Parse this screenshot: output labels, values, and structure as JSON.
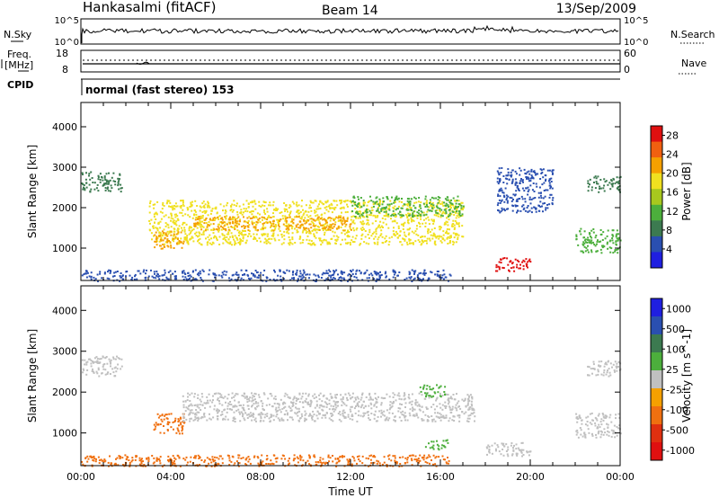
{
  "header": {
    "station": "Hankasalmi (fitACF)",
    "beam": "Beam 14",
    "date": "13/Sep/2009"
  },
  "status_panel": {
    "nsky_label": "N.Sky",
    "nsky_ticks": [
      "10^5",
      "10^0"
    ],
    "nsearch_label": "N.Search",
    "nsearch_ticks": [
      "10^5",
      "10^0"
    ],
    "freq_label_1": "Freq.",
    "freq_label_2": "[MHz]",
    "freq_ticks": [
      "18",
      "8"
    ],
    "nave_label": "Nave",
    "nave_ticks": [
      "60",
      "0"
    ],
    "cpid_label": "CPID",
    "cpid_text": "normal (fast stereo) 153"
  },
  "colors": {
    "power_scale": [
      "#1f1fe0",
      "#2a4fb0",
      "#3c7a50",
      "#4caf3c",
      "#a8c81e",
      "#f0e020",
      "#f5a000",
      "#f06010",
      "#e01010"
    ],
    "velocity_scale": [
      "#1f1fe0",
      "#2a4fb0",
      "#3c7a50",
      "#4caf3c",
      "#c0c0c0",
      "#f5a000",
      "#f07010",
      "#e03010",
      "#e01010"
    ],
    "ground_scatter": "#c0c0c0"
  },
  "chart_data": [
    {
      "type": "heatmap",
      "panel": "power",
      "ylabel": "Slant Range [km]",
      "yticks": [
        "1000",
        "2000",
        "3000",
        "4000"
      ],
      "ylim": [
        200,
        4600
      ],
      "xlim": [
        0,
        24
      ],
      "colorbar": {
        "label": "Power [dB]",
        "ticks": [
          "4",
          "8",
          "12",
          "16",
          "20",
          "24",
          "28"
        ],
        "range": [
          0,
          30
        ]
      },
      "echo_regions": [
        {
          "name": "near-range band",
          "t": [
            0.0,
            16.5
          ],
          "range": [
            200,
            480
          ],
          "power_db": 6
        },
        {
          "name": "early 3000 km echoes",
          "t": [
            0.0,
            1.8
          ],
          "range": [
            2400,
            2900
          ],
          "power_db": 8
        },
        {
          "name": "main F-region band",
          "t": [
            3.0,
            17.0
          ],
          "range": [
            1100,
            2200
          ],
          "power_db": 18
        },
        {
          "name": "main band core",
          "t": [
            5.0,
            12.0
          ],
          "range": [
            1450,
            1800
          ],
          "power_db": 22
        },
        {
          "name": "morning onset",
          "t": [
            3.2,
            4.6
          ],
          "range": [
            1000,
            1450
          ],
          "power_db": 20
        },
        {
          "name": "scattered far echoes",
          "t": [
            12.0,
            17.0
          ],
          "range": [
            1800,
            2300
          ],
          "power_db": 10
        },
        {
          "name": "late 20:00 patch",
          "t": [
            18.4,
            20.0
          ],
          "range": [
            450,
            780
          ],
          "power_db": 28
        },
        {
          "name": "late far echoes",
          "t": [
            18.5,
            21.0
          ],
          "range": [
            1900,
            3000
          ],
          "power_db": 6
        },
        {
          "name": "end-of-day near echoes",
          "t": [
            22.0,
            24.0
          ],
          "range": [
            900,
            1500
          ],
          "power_db": 10
        },
        {
          "name": "end-of-day far echoes",
          "t": [
            22.5,
            24.0
          ],
          "range": [
            2400,
            2800
          ],
          "power_db": 8
        }
      ]
    },
    {
      "type": "heatmap",
      "panel": "velocity",
      "ylabel": "Slant Range [km]",
      "yticks": [
        "1000",
        "2000",
        "3000",
        "4000"
      ],
      "ylim": [
        200,
        4600
      ],
      "xlim": [
        0,
        24
      ],
      "xlabel": "Time UT",
      "xticks": [
        "00:00",
        "04:00",
        "08:00",
        "12:00",
        "16:00",
        "20:00",
        "00:00"
      ],
      "colorbar": {
        "label": "Velocity [m s^-1]",
        "ticks": [
          "1000",
          "500",
          "100",
          "25",
          "-25",
          "-100",
          "-500",
          "-1000"
        ]
      },
      "echo_regions": [
        {
          "name": "near-range band",
          "t": [
            0.0,
            16.5
          ],
          "range": [
            200,
            480
          ],
          "velocity": -100
        },
        {
          "name": "early ground scatter",
          "t": [
            0.0,
            1.8
          ],
          "range": [
            2400,
            2900
          ],
          "velocity": 0
        },
        {
          "name": "morning onset",
          "t": [
            3.2,
            4.6
          ],
          "range": [
            1000,
            1500
          ],
          "velocity": -300
        },
        {
          "name": "ground scatter band",
          "t": [
            4.5,
            17.5
          ],
          "range": [
            1300,
            2000
          ],
          "velocity": 0
        },
        {
          "name": "positive velocity patch",
          "t": [
            15.0,
            16.2
          ],
          "range": [
            1900,
            2200
          ],
          "velocity": 200
        },
        {
          "name": "positive velocity patch 2",
          "t": [
            15.3,
            16.3
          ],
          "range": [
            600,
            850
          ],
          "velocity": 150
        },
        {
          "name": "late ground scatter",
          "t": [
            18.0,
            20.0
          ],
          "range": [
            450,
            780
          ],
          "velocity": 0
        },
        {
          "name": "end-of-day ground scatter",
          "t": [
            22.0,
            24.0
          ],
          "range": [
            900,
            1500
          ],
          "velocity": 0
        },
        {
          "name": "end-of-day far ground scatter",
          "t": [
            22.5,
            24.0
          ],
          "range": [
            2400,
            2800
          ],
          "velocity": 0
        }
      ]
    }
  ]
}
